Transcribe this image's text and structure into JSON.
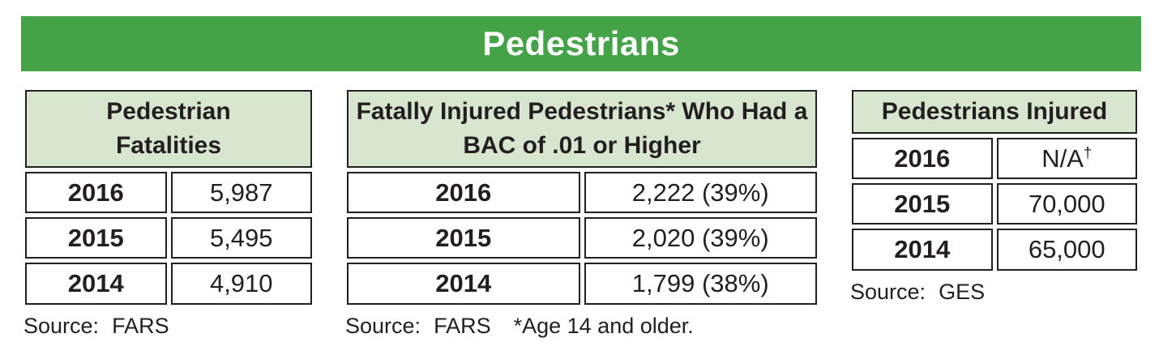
{
  "banner": {
    "title": "Pedestrians",
    "bg_color": "#44a347",
    "text_color": "#ffffff"
  },
  "colors": {
    "table_header_bg": "#d8e6d0",
    "table_border": "#231f20",
    "text": "#231f20"
  },
  "tables": [
    {
      "id": "pedestrian-fatalities",
      "header": "Pedestrian Fatalities",
      "rows": [
        {
          "year": "2016",
          "value": "5,987"
        },
        {
          "year": "2015",
          "value": "5,495"
        },
        {
          "year": "2014",
          "value": "4,910"
        }
      ],
      "source_label": "Source:",
      "source": "FARS",
      "note": ""
    },
    {
      "id": "fatally-injured-bac",
      "header": "Fatally Injured Pedestrians* Who Had a BAC of .01 or Higher",
      "rows": [
        {
          "year": "2016",
          "value": "2,222 (39%)"
        },
        {
          "year": "2015",
          "value": "2,020 (39%)"
        },
        {
          "year": "2014",
          "value": "1,799 (38%)"
        }
      ],
      "source_label": "Source:",
      "source": "FARS",
      "note": "*Age 14 and older."
    },
    {
      "id": "pedestrians-injured",
      "header": "Pedestrians Injured",
      "rows": [
        {
          "year": "2016",
          "value": "N/A",
          "value_sup": "†"
        },
        {
          "year": "2015",
          "value": "70,000"
        },
        {
          "year": "2014",
          "value": "65,000"
        }
      ],
      "source_label": "Source:",
      "source": "GES",
      "note": ""
    }
  ]
}
